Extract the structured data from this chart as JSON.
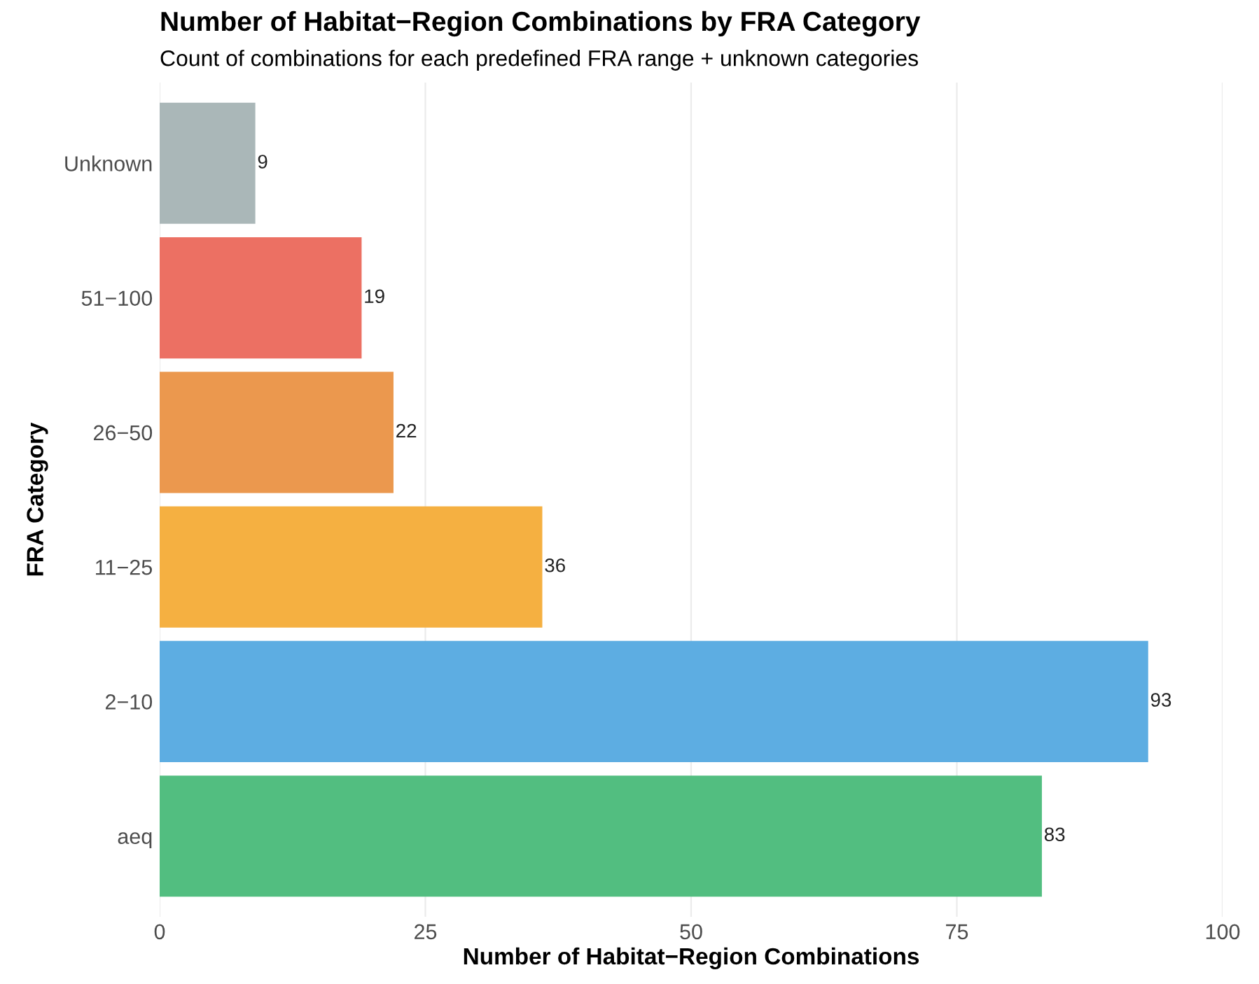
{
  "chart_data": {
    "type": "bar",
    "orientation": "horizontal",
    "title": "Number of Habitat−Region Combinations by FRA Category",
    "subtitle": "Count of combinations for each predefined FRA range + unknown categories",
    "xlabel": "Number of Habitat−Region Combinations",
    "ylabel": "FRA Category",
    "categories": [
      "Unknown",
      "51−100",
      "26−50",
      "11−25",
      "2−10",
      "aeq"
    ],
    "values": [
      9,
      19,
      22,
      36,
      93,
      83
    ],
    "colors": [
      "#aab7b8",
      "#ec7063",
      "#eb984e",
      "#f5b041",
      "#5dade2",
      "#52be80"
    ],
    "data_labels": true,
    "xlim": [
      0,
      100
    ],
    "xticks": [
      0,
      25,
      50,
      75,
      100
    ],
    "grid": "x",
    "legend": false
  }
}
